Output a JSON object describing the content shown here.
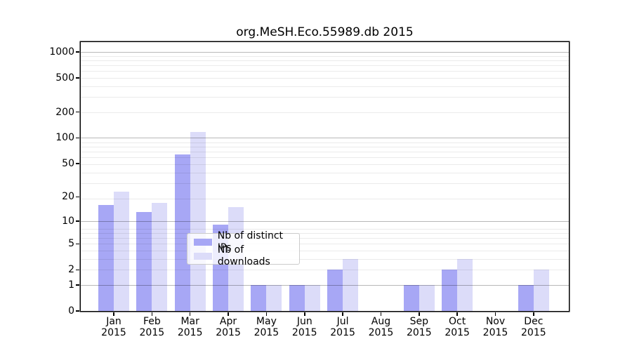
{
  "figure": {
    "title": "org.MeSH.Eco.55989.db 2015"
  },
  "chart_data": {
    "type": "bar",
    "title": "org.MeSH.Eco.55989.db 2015",
    "categories": [
      "Jan 2015",
      "Feb 2015",
      "Mar 2015",
      "Apr 2015",
      "May 2015",
      "Jun 2015",
      "Jul 2015",
      "Aug 2015",
      "Sep 2015",
      "Oct 2015",
      "Nov 2015",
      "Dec 2015"
    ],
    "series": [
      {
        "name": "Nb of distinct IPs",
        "color": "#a7a7f5",
        "values": [
          16,
          13,
          64,
          9,
          1,
          1,
          2,
          0,
          1,
          2,
          0,
          1
        ]
      },
      {
        "name": "Nb of downloads",
        "color": "#dcdcf9",
        "values": [
          23,
          17,
          117,
          15,
          1,
          1,
          3,
          0,
          1,
          3,
          0,
          2
        ]
      }
    ],
    "xlabel": "",
    "ylabel": "",
    "y_scale": "log10(1+y)",
    "y_ticks": [
      0,
      1,
      2,
      5,
      10,
      20,
      50,
      100,
      200,
      500,
      1000
    ],
    "ylim": [
      0,
      1270
    ],
    "grid": true,
    "legend_position": "inside-bottom-center"
  }
}
